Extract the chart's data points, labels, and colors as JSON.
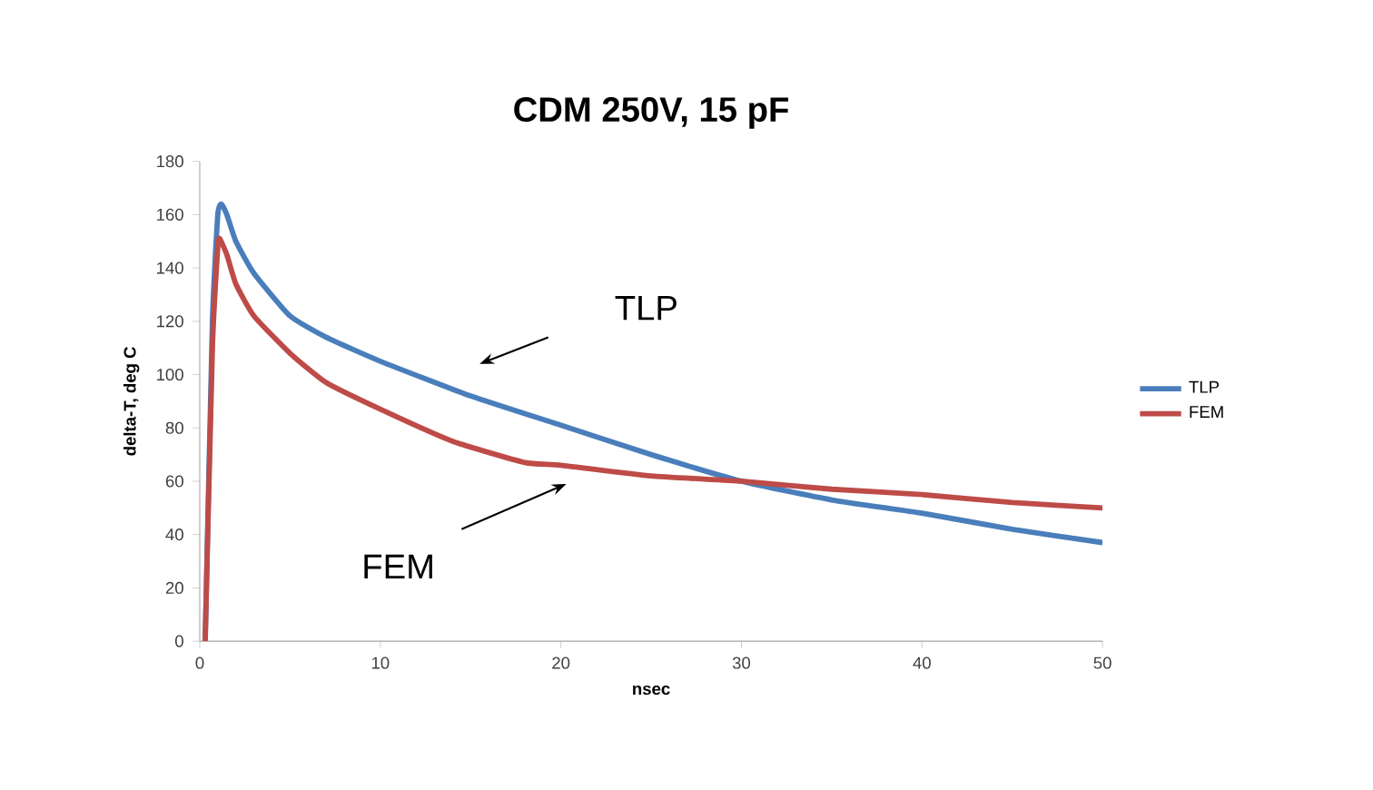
{
  "chart_data": {
    "type": "line",
    "title": "CDM 250V, 15 pF",
    "xlabel": "nsec",
    "ylabel": "delta-T, deg C",
    "xlim": [
      0,
      50
    ],
    "ylim": [
      0,
      180
    ],
    "xticks": [
      0,
      10,
      20,
      30,
      40,
      50
    ],
    "yticks": [
      0,
      20,
      40,
      60,
      80,
      100,
      120,
      140,
      160,
      180
    ],
    "grid": false,
    "legend": "right",
    "marker": "none",
    "line_style": "solid",
    "series": [
      {
        "name": "TLP",
        "color": "#4a7ebb",
        "x": [
          0.3,
          0.7,
          1.0,
          1.2,
          1.5,
          2,
          3,
          5,
          7,
          10,
          15,
          20,
          25,
          30,
          35,
          40,
          45,
          50
        ],
        "values": [
          0,
          120,
          160,
          164,
          160,
          150,
          138,
          122,
          114,
          105,
          92,
          81,
          70,
          60,
          53,
          48,
          42,
          37
        ]
      },
      {
        "name": "FEM",
        "color": "#be4b48",
        "x": [
          0.3,
          0.7,
          1.0,
          1.1,
          1.5,
          2,
          3,
          5,
          7,
          10,
          14,
          18,
          20,
          25,
          30,
          35,
          40,
          45,
          50
        ],
        "values": [
          0,
          110,
          148,
          151,
          145,
          134,
          122,
          108,
          97,
          87,
          75,
          67,
          66,
          62,
          60,
          57,
          55,
          52,
          50
        ]
      }
    ],
    "annotations": [
      "TLP",
      "FEM"
    ]
  }
}
